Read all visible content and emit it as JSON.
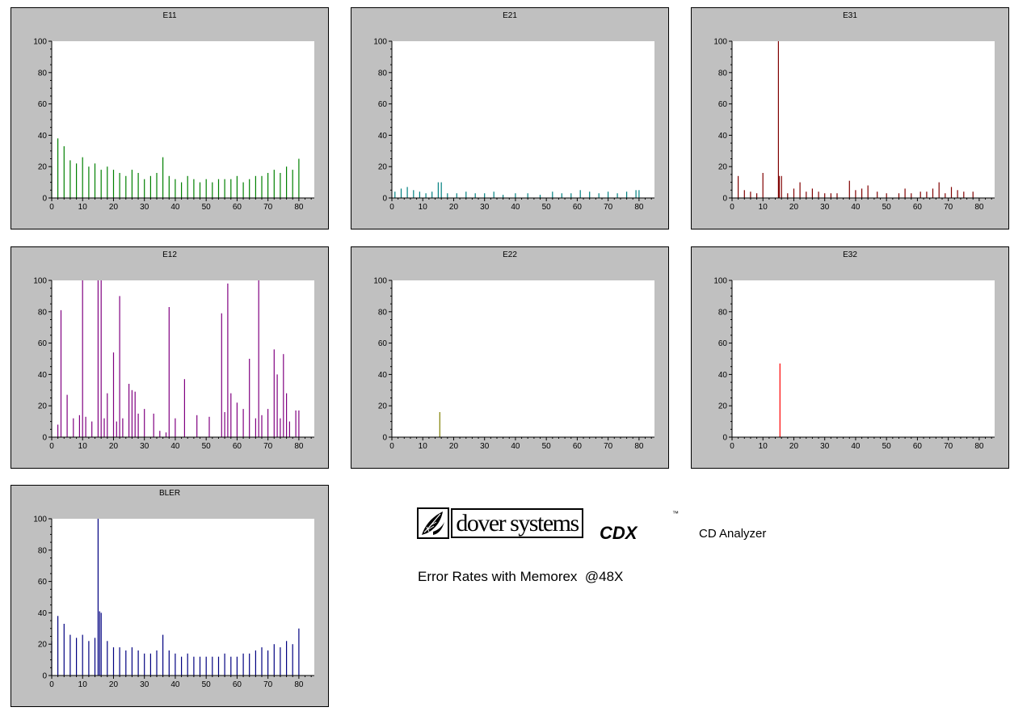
{
  "caption": "Error Rates with Memorex  @48X",
  "branding": {
    "logo_text": "dover systems",
    "product_code": "CDX",
    "trademark": "™",
    "product_name": "CD Analyzer"
  },
  "chart_data": [
    {
      "type": "bar",
      "title": "E11",
      "color": "#008000",
      "x_ticks": [
        0,
        10,
        20,
        30,
        40,
        50,
        60,
        70,
        80
      ],
      "y_ticks": [
        0,
        20,
        40,
        60,
        80,
        100
      ],
      "xlim": [
        0,
        85
      ],
      "ylim": [
        0,
        100
      ],
      "grid": false,
      "series": [
        {
          "x": [
            0,
            2,
            4,
            6,
            8,
            10,
            12,
            14,
            16,
            18,
            20,
            22,
            24,
            26,
            28,
            30,
            32,
            34,
            36,
            38,
            40,
            42,
            44,
            46,
            48,
            50,
            52,
            54,
            56,
            58,
            60,
            62,
            64,
            66,
            68,
            70,
            72,
            74,
            76,
            78,
            80
          ],
          "values": [
            20,
            38,
            33,
            24,
            22,
            26,
            20,
            22,
            18,
            20,
            18,
            16,
            14,
            18,
            16,
            12,
            14,
            16,
            26,
            14,
            12,
            10,
            14,
            12,
            10,
            12,
            10,
            12,
            12,
            12,
            14,
            10,
            12,
            14,
            14,
            16,
            18,
            16,
            20,
            18,
            25
          ]
        }
      ]
    },
    {
      "type": "bar",
      "title": "E21",
      "color": "#008080",
      "x_ticks": [
        0,
        10,
        20,
        30,
        40,
        50,
        60,
        70,
        80
      ],
      "y_ticks": [
        0,
        20,
        40,
        60,
        80,
        100
      ],
      "xlim": [
        0,
        85
      ],
      "ylim": [
        0,
        100
      ],
      "grid": false,
      "series": [
        {
          "x": [
            1,
            3,
            5,
            7,
            9,
            11,
            13,
            15,
            16,
            18,
            21,
            24,
            27,
            30,
            33,
            36,
            40,
            44,
            48,
            52,
            55,
            58,
            61,
            64,
            67,
            70,
            73,
            76,
            79,
            80
          ],
          "values": [
            4,
            6,
            7,
            5,
            4,
            3,
            4,
            10,
            10,
            3,
            3,
            4,
            3,
            3,
            4,
            2,
            3,
            3,
            2,
            4,
            3,
            3,
            5,
            4,
            3,
            4,
            3,
            4,
            5,
            5
          ]
        }
      ]
    },
    {
      "type": "bar",
      "title": "E31",
      "color": "#800000",
      "x_ticks": [
        0,
        10,
        20,
        30,
        40,
        50,
        60,
        70,
        80
      ],
      "y_ticks": [
        0,
        20,
        40,
        60,
        80,
        100
      ],
      "xlim": [
        0,
        85
      ],
      "ylim": [
        0,
        100
      ],
      "grid": false,
      "series": [
        {
          "x": [
            2,
            4,
            6,
            8,
            10,
            15,
            15.3,
            16,
            18,
            20,
            22,
            24,
            26,
            28,
            30,
            32,
            34,
            38,
            40,
            42,
            44,
            47,
            50,
            54,
            56,
            58,
            61,
            63,
            65,
            67,
            69,
            71,
            73,
            75,
            78
          ],
          "values": [
            14,
            5,
            4,
            3,
            16,
            100,
            14,
            14,
            3,
            6,
            10,
            4,
            6,
            4,
            3,
            3,
            3,
            11,
            5,
            6,
            8,
            4,
            3,
            3,
            6,
            3,
            4,
            4,
            6,
            10,
            3,
            7,
            5,
            4,
            4
          ]
        }
      ]
    },
    {
      "type": "bar",
      "title": "E12",
      "color": "#800080",
      "x_ticks": [
        0,
        10,
        20,
        30,
        40,
        50,
        60,
        70,
        80
      ],
      "y_ticks": [
        0,
        20,
        40,
        60,
        80,
        100
      ],
      "xlim": [
        0,
        85
      ],
      "ylim": [
        0,
        100
      ],
      "grid": false,
      "series": [
        {
          "x": [
            2,
            3,
            5,
            7,
            9,
            10,
            11,
            13,
            15,
            16,
            17,
            18,
            20,
            21,
            22,
            23,
            25,
            26,
            27,
            28,
            30,
            33,
            35,
            37,
            38,
            40,
            43,
            47,
            51,
            55,
            56,
            57,
            58,
            60,
            62,
            64,
            66,
            67,
            68,
            70,
            72,
            73,
            74,
            75,
            76,
            77,
            79,
            80
          ],
          "values": [
            8,
            81,
            27,
            12,
            14,
            100,
            13,
            10,
            100,
            100,
            12,
            28,
            54,
            10,
            90,
            12,
            34,
            30,
            29,
            15,
            18,
            15,
            4,
            3,
            83,
            12,
            37,
            14,
            13,
            79,
            16,
            98,
            28,
            22,
            18,
            50,
            12,
            100,
            14,
            18,
            56,
            40,
            12,
            53,
            28,
            10,
            17,
            17
          ]
        }
      ]
    },
    {
      "type": "bar",
      "title": "E22",
      "color": "#808000",
      "x_ticks": [
        0,
        10,
        20,
        30,
        40,
        50,
        60,
        70,
        80
      ],
      "y_ticks": [
        0,
        20,
        40,
        60,
        80,
        100
      ],
      "xlim": [
        0,
        85
      ],
      "ylim": [
        0,
        100
      ],
      "grid": false,
      "series": [
        {
          "x": [
            15.5
          ],
          "values": [
            16
          ]
        }
      ]
    },
    {
      "type": "bar",
      "title": "E32",
      "color": "#ff0000",
      "x_ticks": [
        0,
        10,
        20,
        30,
        40,
        50,
        60,
        70,
        80
      ],
      "y_ticks": [
        0,
        20,
        40,
        60,
        80,
        100
      ],
      "xlim": [
        0,
        85
      ],
      "ylim": [
        0,
        100
      ],
      "grid": false,
      "series": [
        {
          "x": [
            15.5
          ],
          "values": [
            47
          ]
        }
      ]
    },
    {
      "type": "bar",
      "title": "BLER",
      "color": "#000080",
      "x_ticks": [
        0,
        10,
        20,
        30,
        40,
        50,
        60,
        70,
        80
      ],
      "y_ticks": [
        0,
        20,
        40,
        60,
        80,
        100
      ],
      "xlim": [
        0,
        85
      ],
      "ylim": [
        0,
        100
      ],
      "grid": false,
      "series": [
        {
          "x": [
            0,
            2,
            4,
            6,
            8,
            10,
            12,
            14,
            15,
            15.5,
            16,
            18,
            20,
            22,
            24,
            26,
            28,
            30,
            32,
            34,
            36,
            38,
            40,
            42,
            44,
            46,
            48,
            50,
            52,
            54,
            56,
            58,
            60,
            62,
            64,
            66,
            68,
            70,
            72,
            74,
            76,
            78,
            80
          ],
          "values": [
            22,
            38,
            33,
            26,
            24,
            26,
            22,
            24,
            100,
            41,
            40,
            22,
            18,
            18,
            16,
            18,
            16,
            14,
            14,
            16,
            26,
            16,
            14,
            12,
            14,
            12,
            12,
            12,
            12,
            12,
            14,
            12,
            12,
            14,
            14,
            16,
            18,
            16,
            20,
            18,
            22,
            20,
            30
          ]
        }
      ]
    }
  ]
}
